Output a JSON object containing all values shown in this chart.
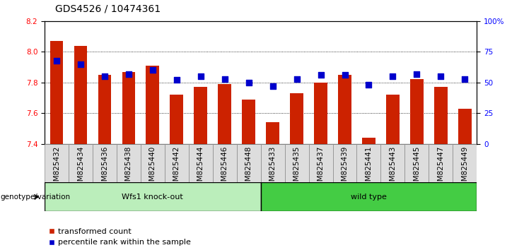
{
  "title": "GDS4526 / 10474361",
  "samples": [
    "GSM825432",
    "GSM825434",
    "GSM825436",
    "GSM825438",
    "GSM825440",
    "GSM825442",
    "GSM825444",
    "GSM825446",
    "GSM825448",
    "GSM825433",
    "GSM825435",
    "GSM825437",
    "GSM825439",
    "GSM825441",
    "GSM825443",
    "GSM825445",
    "GSM825447",
    "GSM825449"
  ],
  "bar_values": [
    8.07,
    8.04,
    7.85,
    7.87,
    7.91,
    7.72,
    7.77,
    7.79,
    7.69,
    7.54,
    7.73,
    7.8,
    7.85,
    7.44,
    7.72,
    7.82,
    7.77,
    7.63
  ],
  "dot_values": [
    68,
    65,
    55,
    57,
    60,
    52,
    55,
    53,
    50,
    47,
    53,
    56,
    56,
    48,
    55,
    57,
    55,
    53
  ],
  "ylim_left": [
    7.4,
    8.2
  ],
  "ylim_right": [
    0,
    100
  ],
  "yticks_left": [
    7.4,
    7.6,
    7.8,
    8.0,
    8.2
  ],
  "yticks_right": [
    0,
    25,
    50,
    75,
    100
  ],
  "ytick_labels_right": [
    "0",
    "25",
    "50",
    "75",
    "100%"
  ],
  "group1_label": "Wfs1 knock-out",
  "group2_label": "wild type",
  "group1_count": 9,
  "group2_count": 9,
  "bar_color": "#cc2200",
  "dot_color": "#0000cc",
  "group1_bg": "#bbeebb",
  "group2_bg": "#44cc44",
  "tick_bg": "#dddddd",
  "xlabel_left": "genotype/variation",
  "legend_labels": [
    "transformed count",
    "percentile rank within the sample"
  ],
  "grid_color": "#000000",
  "background_color": "#ffffff",
  "bar_width": 0.55,
  "title_fontsize": 10,
  "tick_fontsize": 7.5,
  "label_fontsize": 8
}
